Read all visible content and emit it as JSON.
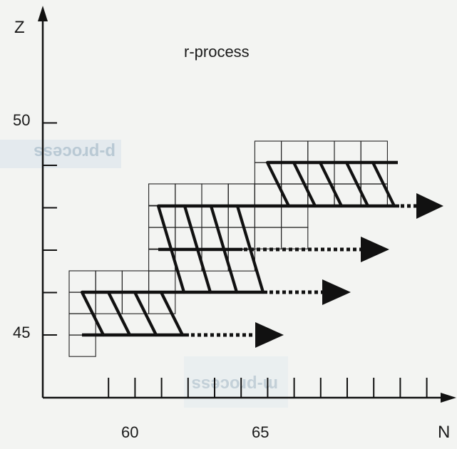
{
  "title": "r-process",
  "x_axis": {
    "label": "N",
    "tick_labels": [
      "60",
      "65"
    ]
  },
  "y_axis": {
    "label": "Z",
    "tick_labels": [
      "50",
      "45"
    ]
  },
  "background_marks": {
    "upper_left": "p-process",
    "lower_middle": "m-process"
  },
  "colors": {
    "ink": "#111111",
    "grid": "#222222",
    "background": "#f3f4f2",
    "ghost": "#b9c9d4"
  },
  "chart_data": {
    "type": "diagram",
    "x_range": [
      56,
      69
    ],
    "y_range": [
      44,
      51
    ],
    "blocks": [
      {
        "cells": [
          [
            57,
            44
          ],
          [
            57,
            45
          ],
          [
            57,
            46
          ],
          [
            58,
            46
          ],
          [
            59,
            46
          ],
          [
            60,
            46
          ],
          [
            61,
            46
          ],
          [
            57,
            47
          ],
          [
            58,
            47
          ],
          [
            59,
            47
          ],
          [
            60,
            47
          ],
          [
            61,
            47
          ]
        ]
      },
      {
        "cells": [
          [
            61,
            46
          ],
          [
            61,
            47
          ],
          [
            61,
            48
          ],
          [
            61,
            49
          ],
          [
            61,
            50
          ],
          [
            62,
            46
          ],
          [
            63,
            46
          ],
          [
            64,
            46
          ],
          [
            62,
            47
          ],
          [
            63,
            47
          ],
          [
            64,
            47
          ],
          [
            62,
            48
          ],
          [
            63,
            48
          ],
          [
            64,
            48
          ],
          [
            62,
            49
          ],
          [
            63,
            49
          ],
          [
            64,
            49
          ],
          [
            62,
            50
          ],
          [
            63,
            50
          ],
          [
            64,
            50
          ],
          [
            65,
            49
          ],
          [
            66,
            49
          ]
        ]
      },
      {
        "cells": [
          [
            65,
            50
          ],
          [
            65,
            51
          ],
          [
            66,
            50
          ],
          [
            66,
            51
          ],
          [
            67,
            50
          ],
          [
            67,
            51
          ],
          [
            68,
            50
          ],
          [
            68,
            51
          ],
          [
            69,
            50
          ],
          [
            69,
            51
          ],
          [
            70,
            50
          ],
          [
            70,
            51
          ]
        ]
      }
    ],
    "paths": [
      {
        "Z": 45,
        "N_from": 57,
        "N_to": 61,
        "arrow_to": 64.2
      },
      {
        "Z": 46,
        "N_from": 57,
        "N_to": 64,
        "arrow_to": 67.2
      },
      {
        "Z": 47,
        "N_from": 60,
        "N_to": 63,
        "arrow_to": 68.5
      },
      {
        "Z": 48,
        "N_from": 60,
        "N_to": 68.5,
        "arrow_to": 71
      },
      {
        "Z": 49,
        "N_from": 64,
        "N_to": 68.5
      }
    ]
  }
}
